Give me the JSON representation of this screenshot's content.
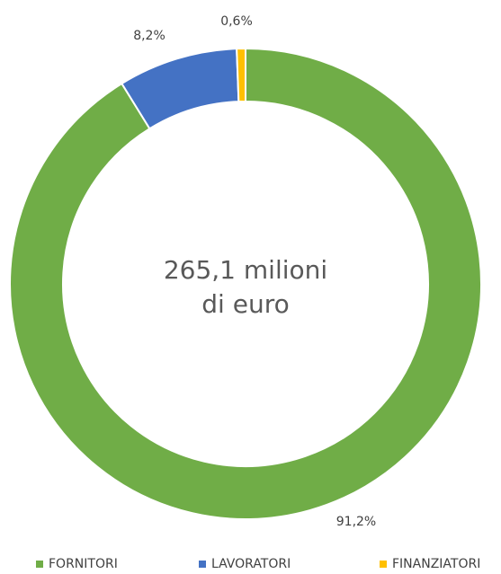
{
  "chart_data": {
    "type": "pie",
    "variant": "donut",
    "center_text": [
      "265,1 milioni",
      "di euro"
    ],
    "slices": [
      {
        "name": "FORNITORI",
        "value": 91.2,
        "label": "91,2%",
        "color": "#70AD47"
      },
      {
        "name": "LAVORATORI",
        "value": 8.2,
        "label": "8,2%",
        "color": "#4472C4"
      },
      {
        "name": "FINANZIATORI",
        "value": 0.6,
        "label": "0,6%",
        "color": "#FFC000"
      }
    ],
    "legend_placement": "bottom"
  }
}
